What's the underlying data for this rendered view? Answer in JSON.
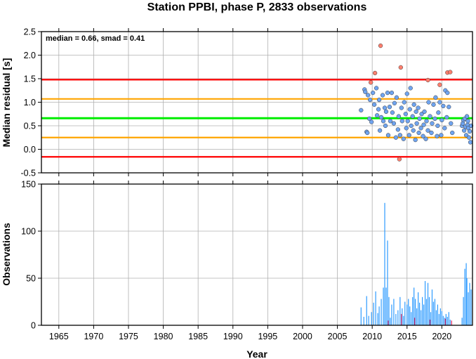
{
  "title": "Station PPBI, phase P, 2833 observations",
  "annotation": "median = 0.66, smad = 0.41",
  "colors": {
    "red_line": "#ff0000",
    "orange_line": "#ffa500",
    "green_line": "#00ee00",
    "outlier_point": "#ff7f6e",
    "normal_point": "#6fa4f0",
    "bar_normal": "#2e9bff",
    "bar_highlight": "#e0245e",
    "grid": "#b0b0b0"
  },
  "chart_data": [
    {
      "type": "scatter",
      "ylabel": "Median residual [s]",
      "xlim": [
        1962.5,
        2024.4
      ],
      "ylim": [
        -0.5,
        2.5
      ],
      "x_ticks": [
        1965,
        1970,
        1975,
        1980,
        1985,
        1990,
        1995,
        2000,
        2005,
        2010,
        2015,
        2020
      ],
      "y_ticks": [
        "-0.5",
        "0.0",
        "0.5",
        "1.0",
        "1.5",
        "2.0",
        "2.5"
      ],
      "grid": true,
      "reference_lines": [
        {
          "name": "median",
          "y": 0.66,
          "color": "green"
        },
        {
          "name": "median + 1 smad",
          "y": 1.07,
          "color": "orange"
        },
        {
          "name": "median - 1 smad",
          "y": 0.25,
          "color": "orange"
        },
        {
          "name": "median + 2 smad",
          "y": 1.48,
          "color": "red"
        },
        {
          "name": "median - 2 smad",
          "y": -0.16,
          "color": "red"
        }
      ],
      "series": [
        {
          "kind": "outlier",
          "points": [
            [
              2009.8,
              1.42
            ],
            [
              2010.4,
              1.62
            ],
            [
              2011.2,
              2.2
            ],
            [
              2013.9,
              -0.21
            ],
            [
              2014.1,
              1.74
            ],
            [
              2018.0,
              1.47
            ],
            [
              2019.7,
              1.37
            ],
            [
              2020.8,
              1.63
            ],
            [
              2021.2,
              1.64
            ]
          ]
        },
        {
          "kind": "normal",
          "points": [
            [
              2008.4,
              0.83
            ],
            [
              2008.9,
              1.27
            ],
            [
              2009.0,
              1.22
            ],
            [
              2009.2,
              0.37
            ],
            [
              2009.3,
              0.35
            ],
            [
              2009.4,
              1.15
            ],
            [
              2009.6,
              0.65
            ],
            [
              2009.7,
              1.05
            ],
            [
              2009.9,
              0.58
            ],
            [
              2010.1,
              1.2
            ],
            [
              2010.3,
              0.95
            ],
            [
              2010.6,
              1.3
            ],
            [
              2010.7,
              0.72
            ],
            [
              2010.9,
              0.85
            ],
            [
              2011.0,
              1.05
            ],
            [
              2011.1,
              0.4
            ],
            [
              2011.3,
              0.68
            ],
            [
              2011.5,
              1.15
            ],
            [
              2011.6,
              0.6
            ],
            [
              2011.8,
              0.88
            ],
            [
              2011.9,
              0.5
            ],
            [
              2012.0,
              0.8
            ],
            [
              2012.2,
              1.2
            ],
            [
              2012.3,
              0.3
            ],
            [
              2012.5,
              0.9
            ],
            [
              2012.6,
              0.6
            ],
            [
              2012.8,
              1.2
            ],
            [
              2012.9,
              0.78
            ],
            [
              2013.1,
              0.55
            ],
            [
              2013.2,
              0.98
            ],
            [
              2013.4,
              0.25
            ],
            [
              2013.5,
              1.1
            ],
            [
              2013.7,
              0.42
            ],
            [
              2013.8,
              0.7
            ],
            [
              2014.0,
              0.3
            ],
            [
              2014.2,
              0.88
            ],
            [
              2014.3,
              0.6
            ],
            [
              2014.5,
              0.22
            ],
            [
              2014.6,
              1.0
            ],
            [
              2014.8,
              0.75
            ],
            [
              2014.9,
              0.45
            ],
            [
              2015.0,
              1.18
            ],
            [
              2015.1,
              0.6
            ],
            [
              2015.3,
              0.3
            ],
            [
              2015.4,
              0.85
            ],
            [
              2015.5,
              1.3
            ],
            [
              2015.6,
              0.5
            ],
            [
              2015.8,
              0.7
            ],
            [
              2015.9,
              0.4
            ],
            [
              2016.0,
              0.95
            ],
            [
              2016.2,
              0.2
            ],
            [
              2016.3,
              0.8
            ],
            [
              2016.4,
              0.55
            ],
            [
              2016.6,
              0.88
            ],
            [
              2016.7,
              0.35
            ],
            [
              2016.8,
              0.65
            ],
            [
              2017.0,
              0.45
            ],
            [
              2017.1,
              0.75
            ],
            [
              2017.3,
              0.28
            ],
            [
              2017.4,
              0.52
            ],
            [
              2017.5,
              0.8
            ],
            [
              2017.7,
              0.22
            ],
            [
              2017.8,
              0.6
            ],
            [
              2018.0,
              0.4
            ],
            [
              2018.1,
              1.0
            ],
            [
              2018.3,
              0.7
            ],
            [
              2018.5,
              0.35
            ],
            [
              2018.6,
              0.55
            ],
            [
              2018.8,
              0.95
            ],
            [
              2019.0,
              0.65
            ],
            [
              2019.1,
              1.1
            ],
            [
              2019.3,
              0.28
            ],
            [
              2019.4,
              0.5
            ],
            [
              2019.5,
              0.78
            ],
            [
              2019.7,
              1.0
            ],
            [
              2019.9,
              0.3
            ],
            [
              2020.0,
              0.62
            ],
            [
              2020.2,
              0.92
            ],
            [
              2020.4,
              0.45
            ],
            [
              2020.5,
              1.25
            ],
            [
              2020.7,
              0.68
            ],
            [
              2020.8,
              1.2
            ],
            [
              2021.0,
              0.9
            ],
            [
              2021.3,
              0.55
            ],
            [
              2021.5,
              0.35
            ],
            [
              2022.9,
              0.5
            ],
            [
              2023.0,
              0.55
            ],
            [
              2023.1,
              0.62
            ],
            [
              2023.2,
              0.4
            ],
            [
              2023.3,
              0.65
            ],
            [
              2023.4,
              0.48
            ],
            [
              2023.5,
              0.3
            ],
            [
              2023.6,
              0.7
            ],
            [
              2023.7,
              0.52
            ],
            [
              2023.8,
              0.45
            ],
            [
              2023.9,
              0.25
            ],
            [
              2024.0,
              0.38
            ],
            [
              2024.1,
              0.15
            ],
            [
              2024.2,
              0.5
            ],
            [
              2023.75,
              0.6
            ]
          ]
        }
      ]
    },
    {
      "type": "bar",
      "xlabel": "Year",
      "ylabel": "Observations",
      "xlim": [
        1962.5,
        2024.4
      ],
      "ylim": [
        0,
        150
      ],
      "x_ticks": [
        1965,
        1970,
        1975,
        1980,
        1985,
        1990,
        1995,
        2000,
        2005,
        2010,
        2015,
        2020
      ],
      "y_ticks": [
        "0",
        "50",
        "100",
        "150"
      ],
      "grid": true,
      "bars": [
        [
          2008.4,
          19
        ],
        [
          2008.8,
          9
        ],
        [
          2009.2,
          31
        ],
        [
          2009.5,
          10
        ],
        [
          2009.9,
          14
        ],
        [
          2010.2,
          24
        ],
        [
          2010.5,
          36
        ],
        [
          2010.8,
          13
        ],
        [
          2011.0,
          20
        ],
        [
          2011.3,
          28
        ],
        [
          2011.6,
          40
        ],
        [
          2011.8,
          130
        ],
        [
          2012.0,
          40
        ],
        [
          2012.2,
          90
        ],
        [
          2012.4,
          30
        ],
        [
          2012.6,
          8
        ],
        [
          2012.8,
          22
        ],
        [
          2013.1,
          28
        ],
        [
          2013.4,
          12
        ],
        [
          2013.7,
          16
        ],
        [
          2014.0,
          30
        ],
        [
          2014.3,
          18
        ],
        [
          2014.5,
          10
        ],
        [
          2014.7,
          25
        ],
        [
          2015.0,
          22
        ],
        [
          2015.2,
          28
        ],
        [
          2015.4,
          20
        ],
        [
          2015.6,
          14
        ],
        [
          2015.8,
          30
        ],
        [
          2016.0,
          40
        ],
        [
          2016.2,
          28
        ],
        [
          2016.4,
          18
        ],
        [
          2016.6,
          35
        ],
        [
          2016.8,
          24
        ],
        [
          2017.0,
          16
        ],
        [
          2017.2,
          30
        ],
        [
          2017.4,
          22
        ],
        [
          2017.6,
          47
        ],
        [
          2017.8,
          28
        ],
        [
          2018.0,
          45
        ],
        [
          2018.2,
          30
        ],
        [
          2018.4,
          14
        ],
        [
          2018.6,
          38
        ],
        [
          2018.8,
          25
        ],
        [
          2019.0,
          28
        ],
        [
          2019.2,
          16
        ],
        [
          2019.4,
          22
        ],
        [
          2019.6,
          12
        ],
        [
          2019.8,
          18
        ],
        [
          2020.0,
          15
        ],
        [
          2020.2,
          10
        ],
        [
          2020.4,
          8
        ],
        [
          2020.6,
          12
        ],
        [
          2020.8,
          9
        ],
        [
          2021.0,
          14
        ],
        [
          2021.2,
          6
        ],
        [
          2022.9,
          8
        ],
        [
          2023.1,
          30
        ],
        [
          2023.3,
          60
        ],
        [
          2023.5,
          66
        ],
        [
          2023.6,
          50
        ],
        [
          2023.8,
          35
        ],
        [
          2024.0,
          45
        ],
        [
          2024.2,
          38
        ]
      ],
      "highlight_bars": [
        [
          2012.3,
          5
        ],
        [
          2014.2,
          12
        ],
        [
          2016.1,
          8
        ],
        [
          2018.3,
          6
        ],
        [
          2020.5,
          7
        ],
        [
          2021.4,
          5
        ]
      ]
    }
  ]
}
